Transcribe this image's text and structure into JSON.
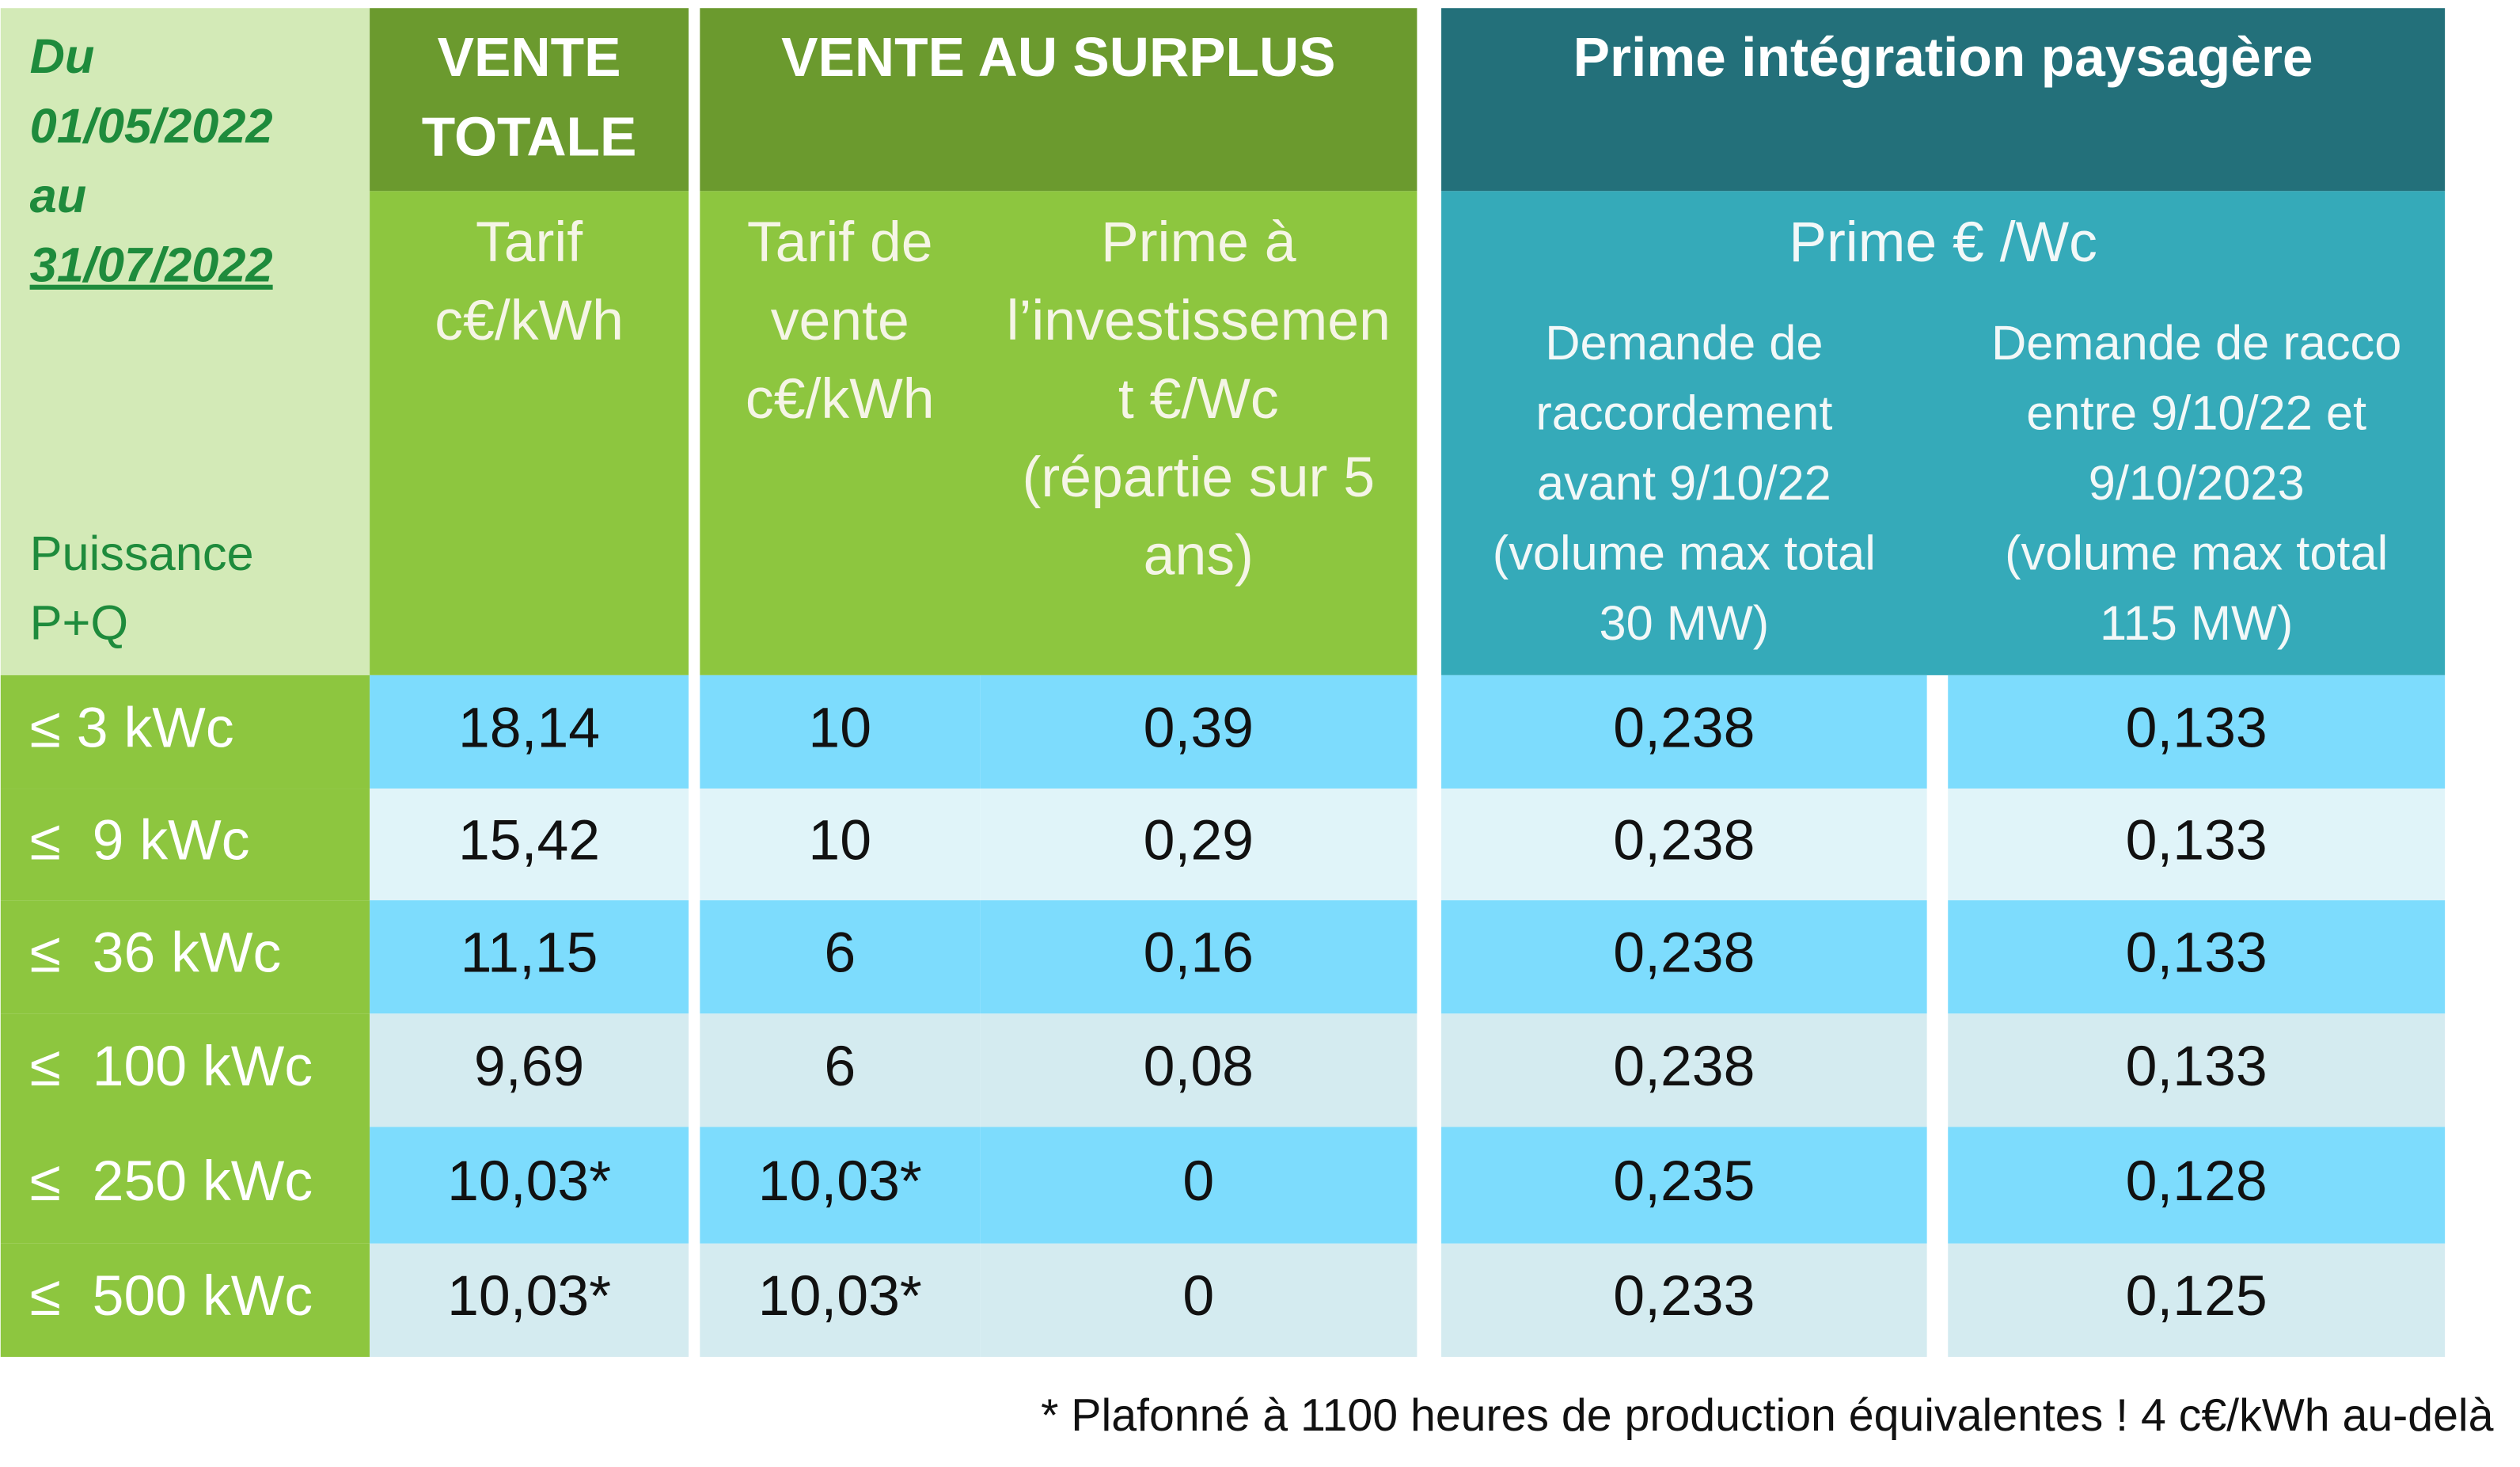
{
  "header": {
    "period": [
      "Du",
      "01/05/2022",
      "au",
      "31/07/2022"
    ],
    "power_label": [
      "Puissance",
      "P+Q"
    ],
    "groups": [
      [
        "VENTE",
        "TOTALE"
      ],
      [
        "VENTE AU SURPLUS"
      ],
      [
        "Prime intégration paysagère"
      ]
    ],
    "prime_unit": "Prime € /Wc",
    "columns": [
      [
        "Tarif",
        "c€/kWh"
      ],
      [
        "Tarif de",
        "vente",
        "c€/kWh"
      ],
      [
        "Prime à",
        "l’investissemen",
        "t €/Wc",
        "(répartie sur 5",
        "ans)"
      ],
      [
        "Demande de",
        "raccordement",
        "avant 9/10/22",
        "(volume max total",
        "30 MW)"
      ],
      [
        "Demande de racco",
        "entre 9/10/22 et",
        "9/10/2023",
        "(volume max total",
        "115 MW)"
      ]
    ]
  },
  "table": {
    "rows": [
      [
        "≤ 3 kWc",
        "18,14",
        "10",
        "0,39",
        "0,238",
        "0,133"
      ],
      [
        "≤  9 kWc",
        "15,42",
        "10",
        "0,29",
        "0,238",
        "0,133"
      ],
      [
        "≤  36 kWc",
        "11,15",
        "6",
        "0,16",
        "0,238",
        "0,133"
      ],
      [
        "≤  100 kWc",
        "9,69",
        "6",
        "0,08",
        "0,238",
        "0,133"
      ],
      [
        "≤  250 kWc",
        "10,03*",
        "10,03*",
        "0",
        "0,235",
        "0,128"
      ],
      [
        "≤  500 kWc",
        "10,03*",
        "10,03*",
        "0",
        "0,233",
        "0,125"
      ]
    ]
  },
  "footnote": "* Plafonné à 1100 heures de production équivalentes ! 4 c€/kWh au-delà"
}
